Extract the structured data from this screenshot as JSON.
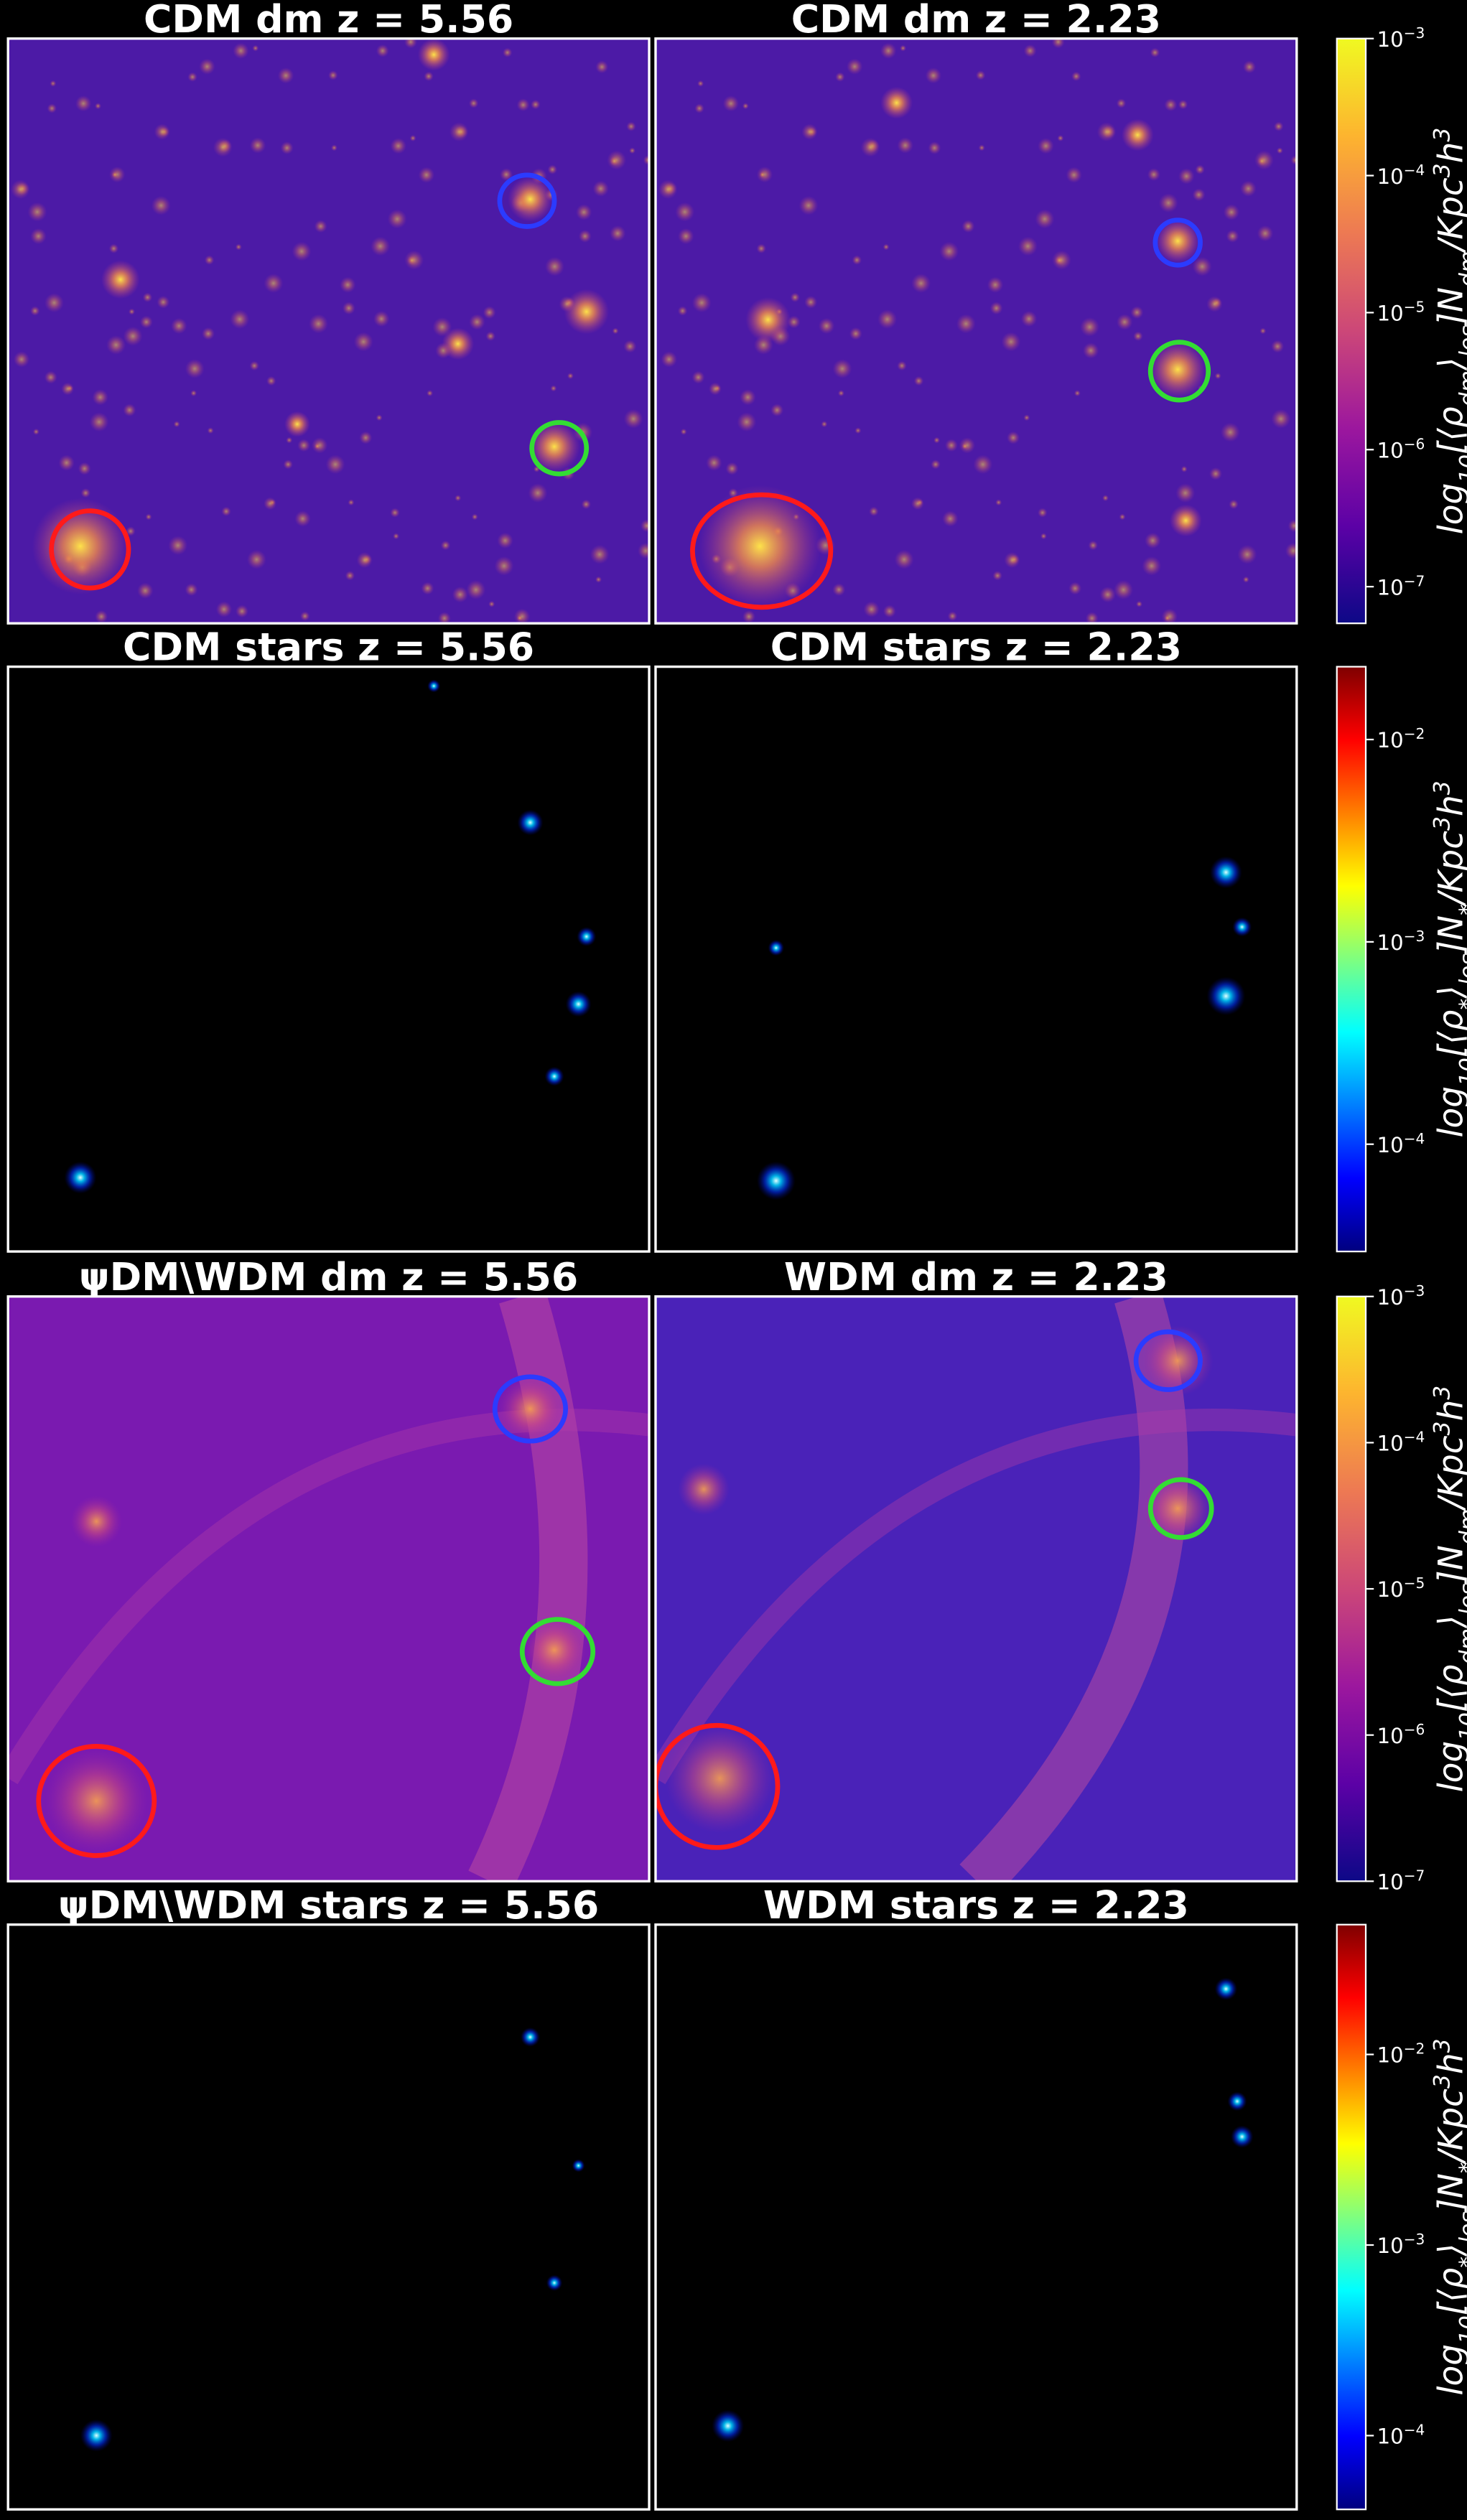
{
  "panels": [
    {
      "title": "CDM dm z = 5.56",
      "kind": "dm"
    },
    {
      "title": "CDM dm z = 2.23",
      "kind": "dm"
    },
    {
      "title": "CDM stars z = 5.56",
      "kind": "stars"
    },
    {
      "title": "CDM stars z = 2.23",
      "kind": "stars"
    },
    {
      "title": "ψDM\\WDM dm z = 5.56",
      "kind": "dm"
    },
    {
      "title": "WDM dm z = 2.23",
      "kind": "dm"
    },
    {
      "title": "ψDM\\WDM stars z = 5.56",
      "kind": "stars"
    },
    {
      "title": "WDM stars z = 2.23",
      "kind": "stars"
    }
  ],
  "colorbars": [
    {
      "colormap": "plasma",
      "scale": "log",
      "lim": [
        5.4e-08,
        0.001
      ],
      "ticks": [
        {
          "value": 0.001,
          "label": "10",
          "sup": "−3"
        },
        {
          "value": 0.0001,
          "label": "10",
          "sup": "−4"
        },
        {
          "value": 1e-05,
          "label": "10",
          "sup": "−5"
        },
        {
          "value": 1e-06,
          "label": "10",
          "sup": "−6"
        },
        {
          "value": 1e-07,
          "label": "10",
          "sup": "−7"
        }
      ],
      "label": [
        [
          "log",
          ""
        ],
        [
          "10",
          "sub"
        ],
        [
          "[⟨ρ",
          ""
        ],
        [
          "dm",
          "sub"
        ],
        [
          "⟩",
          ""
        ],
        [
          "los",
          "sub"
        ],
        [
          "]N",
          ""
        ],
        [
          "dm",
          "sub"
        ],
        [
          "/Kpc",
          ""
        ],
        [
          "3",
          "sup"
        ],
        [
          "h",
          ""
        ],
        [
          "3",
          "sup"
        ]
      ]
    },
    {
      "colormap": "jet",
      "scale": "log",
      "lim": [
        2.95e-05,
        0.0229
      ],
      "ticks": [
        {
          "value": 0.01,
          "label": "10",
          "sup": "−2"
        },
        {
          "value": 0.001,
          "label": "10",
          "sup": "−3"
        },
        {
          "value": 0.0001,
          "label": "10",
          "sup": "−4"
        }
      ],
      "label": [
        [
          "log",
          ""
        ],
        [
          "10",
          "sub"
        ],
        [
          "[⟨ρ",
          ""
        ],
        [
          "*",
          "sub"
        ],
        [
          "⟩",
          ""
        ],
        [
          "los",
          "sub"
        ],
        [
          "]N",
          ""
        ],
        [
          "*",
          "sub"
        ],
        [
          "/Kpc",
          ""
        ],
        [
          "3",
          "sup"
        ],
        [
          "h",
          ""
        ],
        [
          "3",
          "sup"
        ]
      ]
    },
    {
      "colormap": "plasma",
      "scale": "log",
      "lim": [
        1e-07,
        0.001
      ],
      "ticks": [
        {
          "value": 0.001,
          "label": "10",
          "sup": "−3"
        },
        {
          "value": 0.0001,
          "label": "10",
          "sup": "−4"
        },
        {
          "value": 1e-05,
          "label": "10",
          "sup": "−5"
        },
        {
          "value": 1e-06,
          "label": "10",
          "sup": "−6"
        },
        {
          "value": 1e-07,
          "label": "10",
          "sup": "−7"
        }
      ],
      "label": [
        [
          "log",
          ""
        ],
        [
          "10",
          "sub"
        ],
        [
          "[⟨ρ",
          ""
        ],
        [
          "dm",
          "sub"
        ],
        [
          "⟩",
          ""
        ],
        [
          "los",
          "sub"
        ],
        [
          "]N",
          ""
        ],
        [
          "dm",
          "sub"
        ],
        [
          "/Kpc",
          ""
        ],
        [
          "3",
          "sup"
        ],
        [
          "h",
          ""
        ],
        [
          "3",
          "sup"
        ]
      ]
    },
    {
      "colormap": "jet",
      "scale": "log",
      "lim": [
        4.1e-05,
        0.048
      ],
      "ticks": [
        {
          "value": 0.01,
          "label": "10",
          "sup": "−2"
        },
        {
          "value": 0.001,
          "label": "10",
          "sup": "−3"
        },
        {
          "value": 0.0001,
          "label": "10",
          "sup": "−4"
        }
      ],
      "label": [
        [
          "log",
          ""
        ],
        [
          "10",
          "sub"
        ],
        [
          "[⟨ρ",
          ""
        ],
        [
          "*",
          "sub"
        ],
        [
          "⟩",
          ""
        ],
        [
          "los",
          "sub"
        ],
        [
          "]N",
          ""
        ],
        [
          "*",
          "sub"
        ],
        [
          "/Kpc",
          ""
        ],
        [
          "3",
          "sup"
        ],
        [
          "h",
          ""
        ],
        [
          "3",
          "sup"
        ]
      ]
    }
  ]
}
